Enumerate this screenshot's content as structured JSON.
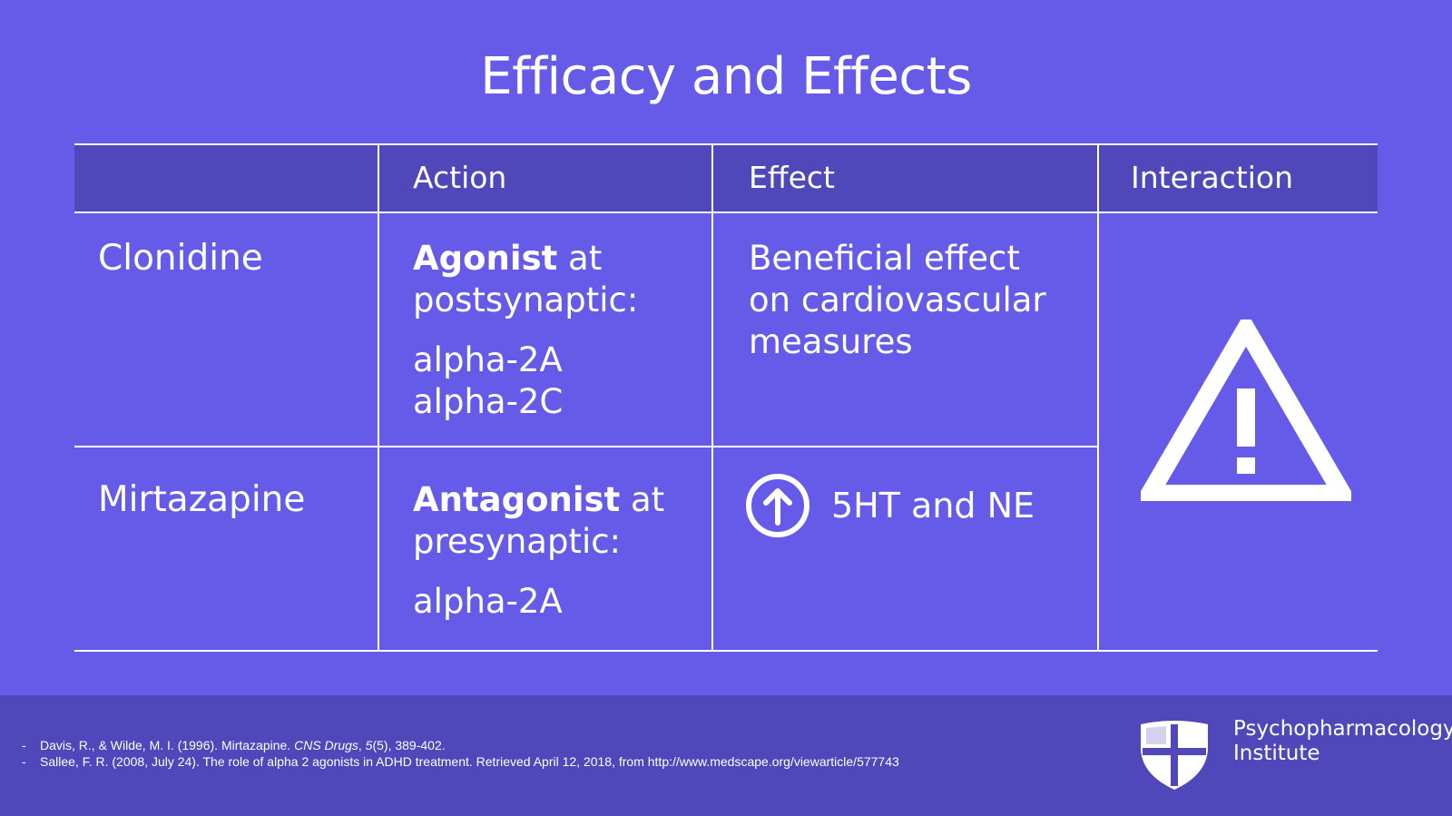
{
  "slide": {
    "title": "Efficacy and Effects"
  },
  "table": {
    "headers": [
      "",
      "Action",
      "Effect",
      "Interaction"
    ],
    "rows": [
      {
        "drug": "Clonidine",
        "action_bold": "Agonist",
        "action_rest": " at",
        "action_line2": "postsynaptic:",
        "receptors": [
          "alpha-2A",
          "alpha-2C"
        ],
        "effect_lines": [
          "Beneficial effect",
          "on cardiovascular",
          "measures"
        ]
      },
      {
        "drug": "Mirtazapine",
        "action_bold": "Antagonist",
        "action_rest": " at",
        "action_line2": "presynaptic:",
        "receptors": [
          "alpha-2A"
        ],
        "effect_icon": "up-arrow-circle-icon",
        "effect_text": "5HT and NE"
      }
    ],
    "interaction_icon": "warning-triangle-icon"
  },
  "footer": {
    "references": [
      {
        "dash": "-",
        "pre": "Davis, R., & Wilde, M. I. (1996). Mirtazapine. ",
        "journal": "CNS Drugs",
        "sep": ", ",
        "volume": "5",
        "post": "(5), 389-402."
      },
      {
        "dash": "-",
        "text": "Sallee, F. R. (2008, July 24). The role of alpha 2 agonists in ADHD treatment. Retrieved April 12, 2018, from http://www.medscape.org/viewarticle/577743"
      }
    ],
    "brand_line1": "Psychopharmacology",
    "brand_line2": "Institute",
    "logo_icon": "shield-cross-icon"
  },
  "colors": {
    "background": "#665BE9",
    "header_band": "#4F47BA",
    "foreground": "#FFFFFF"
  }
}
